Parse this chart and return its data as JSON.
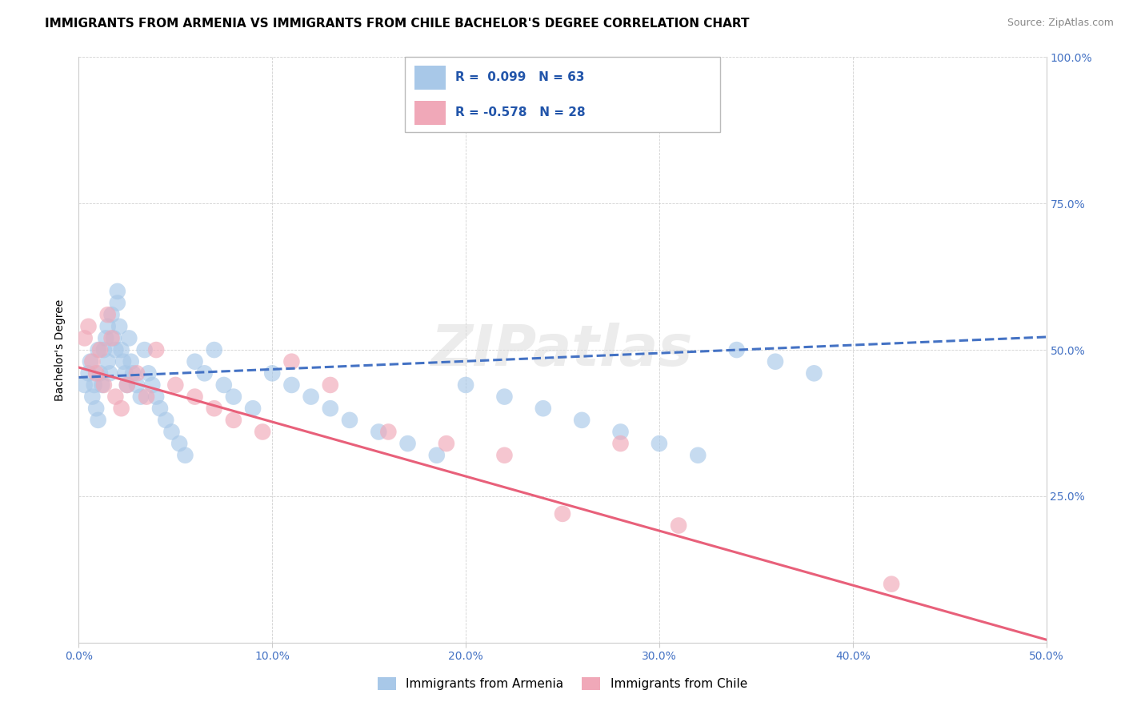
{
  "title": "IMMIGRANTS FROM ARMENIA VS IMMIGRANTS FROM CHILE BACHELOR'S DEGREE CORRELATION CHART",
  "source": "Source: ZipAtlas.com",
  "ylabel": "Bachelor's Degree",
  "watermark": "ZIPatlas",
  "legend_armenia": "Immigrants from Armenia",
  "legend_chile": "Immigrants from Chile",
  "armenia_R": 0.099,
  "armenia_N": 63,
  "chile_R": -0.578,
  "chile_N": 28,
  "armenia_color": "#A8C8E8",
  "chile_color": "#F0A8B8",
  "armenia_line_color": "#4472C4",
  "chile_line_color": "#E8607A",
  "xlim": [
    0.0,
    0.5
  ],
  "ylim": [
    0.0,
    1.0
  ],
  "xticks": [
    0.0,
    0.1,
    0.2,
    0.3,
    0.4,
    0.5
  ],
  "yticks": [
    0.0,
    0.25,
    0.5,
    0.75,
    1.0
  ],
  "xticklabels": [
    "0.0%",
    "10.0%",
    "20.0%",
    "30.0%",
    "40.0%",
    "50.0%"
  ],
  "yticklabels_right": [
    "",
    "25.0%",
    "50.0%",
    "75.0%",
    "100.0%"
  ],
  "armenia_x": [
    0.003,
    0.005,
    0.006,
    0.007,
    0.008,
    0.009,
    0.01,
    0.01,
    0.011,
    0.012,
    0.013,
    0.014,
    0.015,
    0.015,
    0.016,
    0.017,
    0.018,
    0.019,
    0.02,
    0.02,
    0.021,
    0.022,
    0.023,
    0.024,
    0.025,
    0.026,
    0.027,
    0.028,
    0.03,
    0.032,
    0.034,
    0.036,
    0.038,
    0.04,
    0.042,
    0.045,
    0.048,
    0.052,
    0.055,
    0.06,
    0.065,
    0.07,
    0.075,
    0.08,
    0.09,
    0.1,
    0.11,
    0.12,
    0.13,
    0.14,
    0.155,
    0.17,
    0.185,
    0.2,
    0.22,
    0.24,
    0.26,
    0.28,
    0.3,
    0.32,
    0.34,
    0.36,
    0.38
  ],
  "armenia_y": [
    0.44,
    0.46,
    0.48,
    0.42,
    0.44,
    0.4,
    0.38,
    0.5,
    0.46,
    0.44,
    0.5,
    0.52,
    0.54,
    0.48,
    0.46,
    0.56,
    0.52,
    0.5,
    0.58,
    0.6,
    0.54,
    0.5,
    0.48,
    0.46,
    0.44,
    0.52,
    0.48,
    0.46,
    0.44,
    0.42,
    0.5,
    0.46,
    0.44,
    0.42,
    0.4,
    0.38,
    0.36,
    0.34,
    0.32,
    0.48,
    0.46,
    0.5,
    0.44,
    0.42,
    0.4,
    0.46,
    0.44,
    0.42,
    0.4,
    0.38,
    0.36,
    0.34,
    0.32,
    0.44,
    0.42,
    0.4,
    0.38,
    0.36,
    0.34,
    0.32,
    0.5,
    0.48,
    0.46
  ],
  "chile_x": [
    0.003,
    0.005,
    0.007,
    0.009,
    0.011,
    0.013,
    0.015,
    0.017,
    0.019,
    0.022,
    0.025,
    0.03,
    0.035,
    0.04,
    0.05,
    0.06,
    0.07,
    0.08,
    0.095,
    0.11,
    0.13,
    0.16,
    0.19,
    0.22,
    0.25,
    0.28,
    0.31,
    0.42
  ],
  "chile_y": [
    0.52,
    0.54,
    0.48,
    0.46,
    0.5,
    0.44,
    0.56,
    0.52,
    0.42,
    0.4,
    0.44,
    0.46,
    0.42,
    0.5,
    0.44,
    0.42,
    0.4,
    0.38,
    0.36,
    0.48,
    0.44,
    0.36,
    0.34,
    0.32,
    0.22,
    0.34,
    0.2,
    0.1
  ],
  "armenia_line_x0": 0.0,
  "armenia_line_y0": 0.453,
  "armenia_line_x1": 0.5,
  "armenia_line_y1": 0.522,
  "chile_line_x0": 0.0,
  "chile_line_y0": 0.47,
  "chile_line_x1": 0.5,
  "chile_line_y1": 0.005,
  "title_fontsize": 11,
  "axis_label_fontsize": 10,
  "tick_fontsize": 10,
  "legend_fontsize": 11,
  "source_fontsize": 9
}
